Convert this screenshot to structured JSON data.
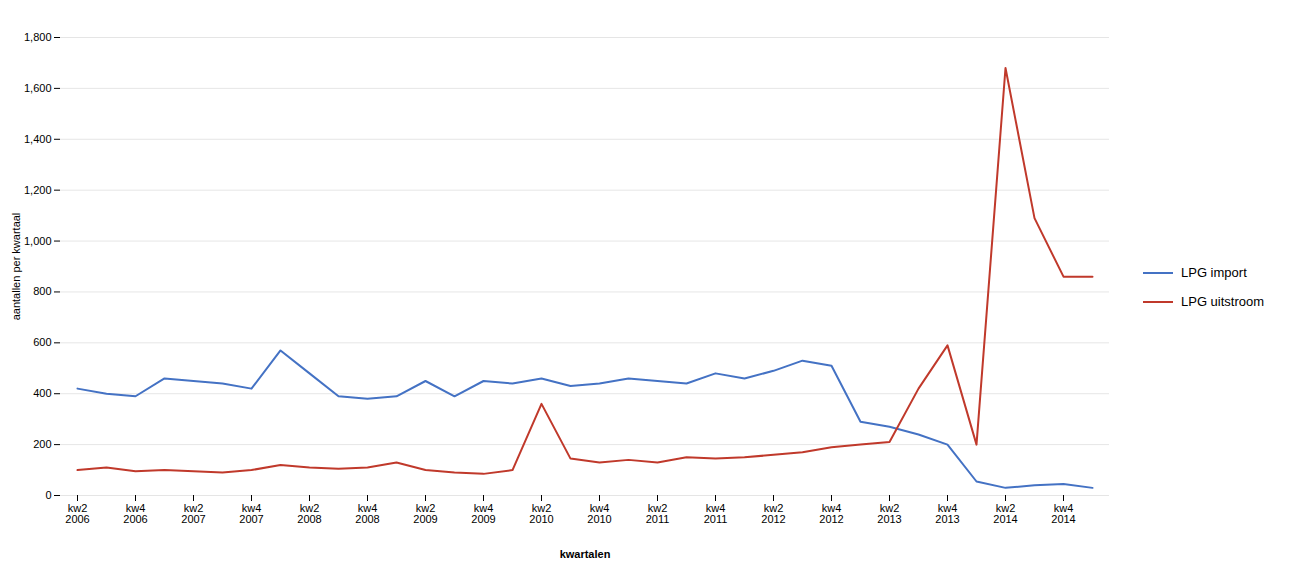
{
  "chart_data": {
    "type": "line",
    "xlabel": "kwartalen",
    "ylabel": "aantallen per kwartaal",
    "categories": [
      "kw2\n2006",
      null,
      "kw4\n2006",
      null,
      "kw2\n2007",
      null,
      "kw4\n2007",
      null,
      "kw2\n2008",
      null,
      "kw4\n2008",
      null,
      "kw2\n2009",
      null,
      "kw4\n2009",
      null,
      "kw2\n2010",
      null,
      "kw4\n2010",
      null,
      "kw2\n2011",
      null,
      "kw4\n2011",
      null,
      "kw2\n2012",
      null,
      "kw4\n2012",
      null,
      "kw2\n2013",
      null,
      "kw4\n2013",
      null,
      "kw2\n2014",
      null,
      "kw4\n2014",
      null
    ],
    "series": [
      {
        "name": "LPG import",
        "color": "#4472C4",
        "values": [
          420,
          400,
          390,
          460,
          450,
          440,
          420,
          570,
          480,
          390,
          380,
          390,
          450,
          390,
          450,
          440,
          460,
          430,
          440,
          460,
          450,
          440,
          480,
          460,
          490,
          530,
          510,
          290,
          270,
          240,
          200,
          55,
          30,
          40,
          45,
          30
        ]
      },
      {
        "name": "LPG uitstroom",
        "color": "#C0392B",
        "values": [
          100,
          110,
          95,
          100,
          95,
          90,
          100,
          120,
          110,
          105,
          110,
          130,
          100,
          90,
          85,
          100,
          360,
          145,
          130,
          140,
          130,
          150,
          145,
          150,
          160,
          170,
          190,
          200,
          210,
          420,
          590,
          200,
          1680,
          1090,
          860,
          860
        ]
      }
    ],
    "ylim": [
      0,
      1800
    ],
    "yticks": [
      0,
      200,
      400,
      600,
      800,
      1000,
      1200,
      1400,
      1600,
      1800
    ],
    "grid": true,
    "legend": "right"
  }
}
